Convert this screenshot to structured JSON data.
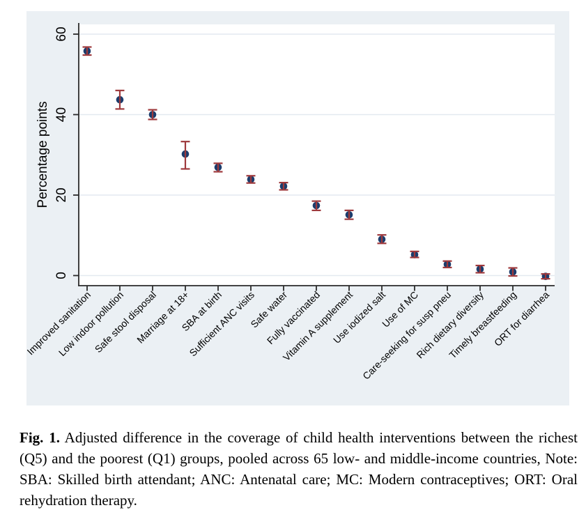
{
  "figure": {
    "caption_label": "Fig. 1.",
    "caption_text": "Adjusted difference in the coverage of child health interventions between the richest (Q5) and the poorest (Q1) groups, pooled across 65 low- and middle-income countries, Note: SBA: Skilled birth attendant; ANC: Antenatal care; MC: Modern contraceptives; ORT: Oral rehydration therapy."
  },
  "chart_data": {
    "type": "scatter",
    "subtype": "point-estimate-with-error-bars",
    "title": "",
    "xlabel": "",
    "ylabel": "Percentage points",
    "yticks": [
      0,
      20,
      40,
      60
    ],
    "ylim": [
      -2.5,
      62
    ],
    "grid": "horizontal",
    "legend": "none",
    "marker": "filled-circle",
    "error_bars": "capped vertical confidence intervals",
    "x_label_rotation_deg": -45,
    "colors": {
      "point": "#1c3c6c",
      "error_bar": "#9e393c",
      "figure_background": "#ebf0f4",
      "plot_background": "#ffffff",
      "gridline": "#e3e9f0",
      "axis": "#2a2a2a",
      "text": "#000000"
    },
    "categories": [
      "Improved sanitation",
      "Low indoor pollution",
      "Safe stool disposal",
      "Marriage at 18+",
      "SBA at birth",
      "Sufficient ANC visits",
      "Safe water",
      "Fully vaccinated",
      "Vitamin A supplement",
      "Use iodized salt",
      "Use of MC",
      "Care-seeking for susp pneu",
      "Rich dietary diversity",
      "Timely breastfeeding",
      "ORT for diarrhea"
    ],
    "values": [
      55.8,
      43.7,
      40.0,
      30.2,
      26.9,
      23.9,
      22.2,
      17.4,
      15.1,
      9.0,
      5.2,
      2.8,
      1.6,
      0.9,
      -0.2
    ],
    "ci_low": [
      54.8,
      41.4,
      38.8,
      26.5,
      25.8,
      23.0,
      21.3,
      16.2,
      14.0,
      8.0,
      4.5,
      2.0,
      0.7,
      -0.1,
      -0.8
    ],
    "ci_high": [
      56.8,
      46.0,
      41.2,
      33.3,
      27.9,
      24.8,
      23.1,
      18.5,
      16.2,
      10.1,
      6.0,
      3.6,
      2.5,
      1.9,
      0.4
    ]
  }
}
